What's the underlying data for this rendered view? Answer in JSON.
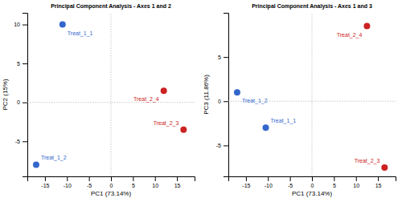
{
  "chart_data": [
    {
      "type": "scatter",
      "title": "Principal Component Analysis - Axes 1 and 2",
      "x_label": "PC1 (73.14%)",
      "y_label": "PC2 (15%)",
      "xlim": [
        -19,
        19
      ],
      "ylim": [
        -9.5,
        11.5
      ],
      "xticks": [
        -15,
        -10,
        -5,
        0,
        5,
        10,
        15
      ],
      "yticks": [
        -5,
        0,
        5,
        10
      ],
      "grid": false,
      "reference_lines": {
        "x": [
          0
        ],
        "y": [
          0
        ]
      },
      "labels": [
        "Treat_1_1",
        "Treat_1_2",
        "Treat_2_4",
        "Treat_2_3"
      ],
      "x": [
        -11,
        -17,
        12,
        16.5
      ],
      "values": [
        10,
        -8,
        1.5,
        -3.5
      ],
      "colors": [
        "#3366CC",
        "#3366CC",
        "#CC2222",
        "#CC2222"
      ]
    },
    {
      "type": "scatter",
      "title": "Principal Component Analysis - Axes 1 and 3",
      "x_label": "PC1 (73.14%)",
      "y_label": "PC3 (11.86%)",
      "xlim": [
        -19,
        19
      ],
      "ylim": [
        -8.5,
        10
      ],
      "xticks": [
        -15,
        -10,
        -5,
        0,
        5,
        10,
        15
      ],
      "yticks": [
        -5,
        0,
        5
      ],
      "grid": false,
      "reference_lines": {
        "x": [
          0
        ],
        "y": [
          0
        ]
      },
      "labels": [
        "Treat_1_2",
        "Treat_1_1",
        "Treat_2_4",
        "Treat_2_3"
      ],
      "x": [
        -17,
        -10.5,
        12.5,
        16.5
      ],
      "values": [
        1.0,
        -3.0,
        8.5,
        -7.5
      ],
      "colors": [
        "#3366CC",
        "#3366CC",
        "#CC2222",
        "#CC2222"
      ]
    }
  ]
}
